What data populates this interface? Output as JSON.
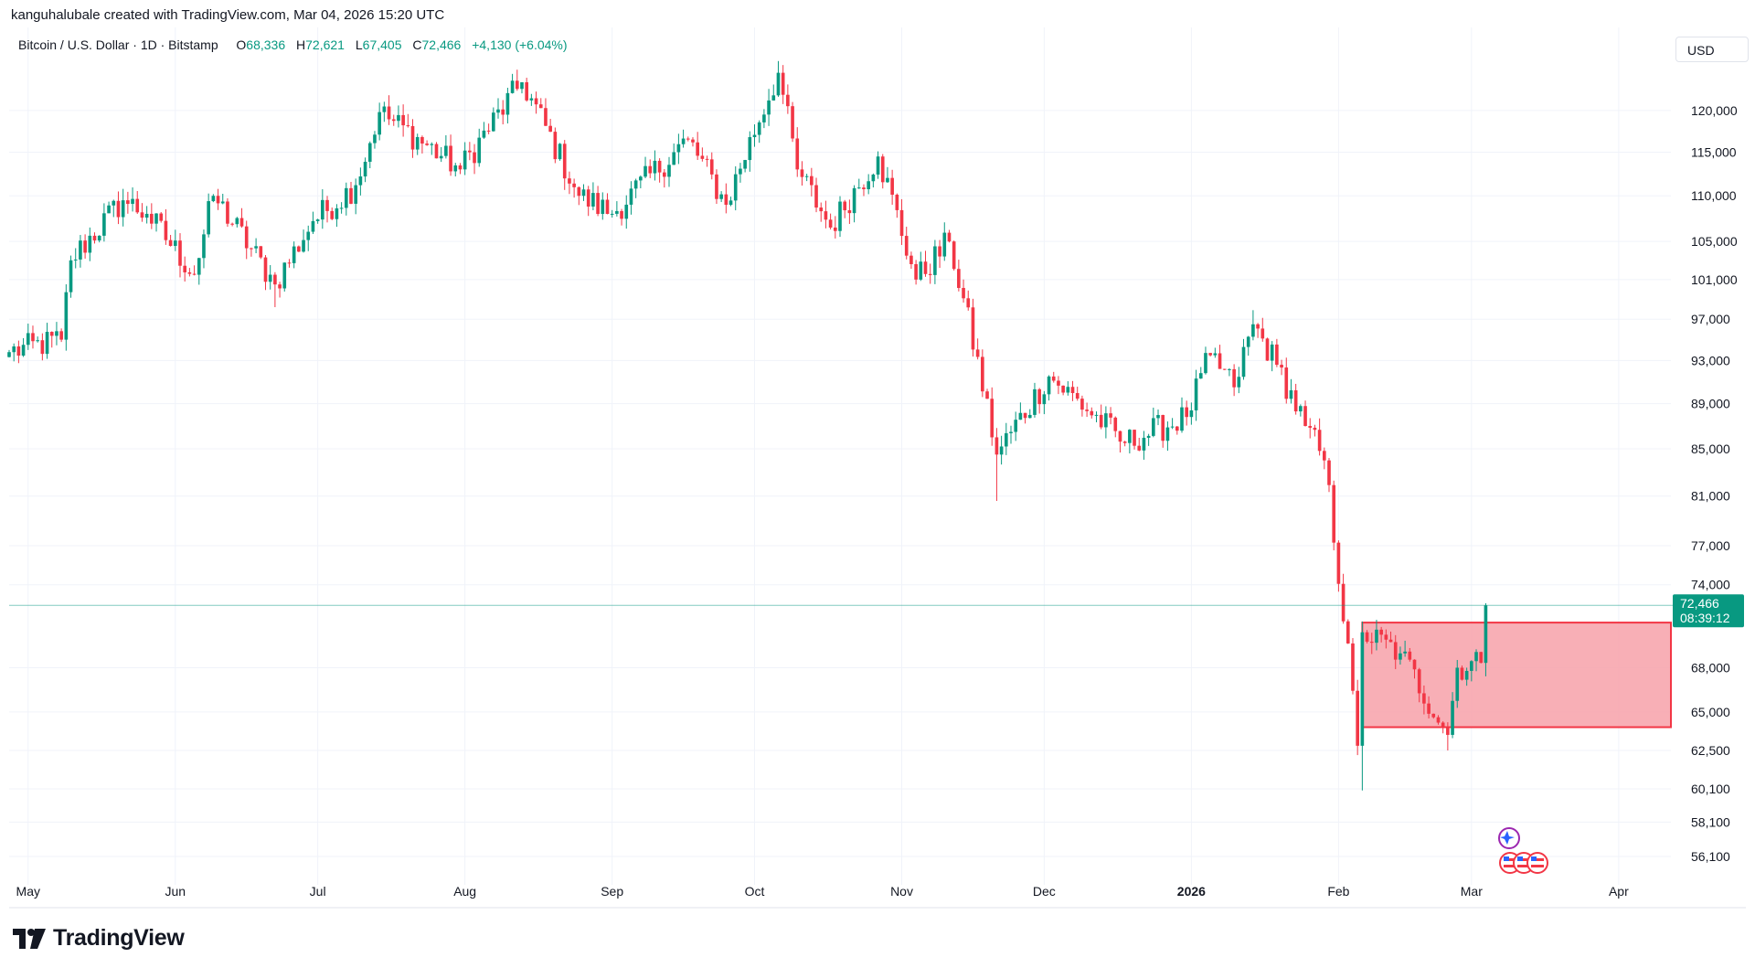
{
  "header": {
    "text": "kanguhalubale created with TradingView.com, Mar 04, 2026 15:20 UTC"
  },
  "symbol": {
    "name": "Bitcoin / U.S. Dollar · 1D · Bitstamp",
    "open_label": "O",
    "open": "68,336",
    "high_label": "H",
    "high": "72,621",
    "low_label": "L",
    "low": "67,405",
    "close_label": "C",
    "close": "72,466",
    "change": "+4,130 (+6.04%)"
  },
  "currency_button": "USD",
  "price_badge": {
    "price": "72,466",
    "countdown": "08:39:12"
  },
  "logo_text": "TradingView",
  "colors": {
    "up": "#089981",
    "down": "#f23645",
    "zone_fill": "#f7a1a9",
    "zone_stroke": "#f23645",
    "grid": "#f0f3fa"
  },
  "chart_data": {
    "type": "candlestick",
    "title": "",
    "x_tick_labels": [
      "May",
      "Jun",
      "Jul",
      "Aug",
      "Sep",
      "Oct",
      "Nov",
      "Dec",
      "2026",
      "Feb",
      "Mar",
      "Apr"
    ],
    "y_tick_labels": [
      "120,000",
      "115,000",
      "110,000",
      "105,000",
      "101,000",
      "97,000",
      "93,000",
      "89,000",
      "85,000",
      "81,000",
      "77,000",
      "74,000",
      "68,000",
      "65,000",
      "62,500",
      "60,100",
      "58,100",
      "56,100"
    ],
    "y_scale": "log",
    "ylim": [
      54500,
      127000
    ],
    "xlim": [
      "2025-04-27",
      "2026-04-12"
    ],
    "grid": true,
    "current_price": 72466,
    "zone": {
      "x_start": "2026-02-06",
      "x_end": "2026-04-12",
      "y_low": 64000,
      "y_high": 71200,
      "color": "#f7a1a9"
    },
    "keypoints": [
      {
        "date": "2025-04-27",
        "close": 93800
      },
      {
        "date": "2025-05-08",
        "close": 95000
      },
      {
        "date": "2025-05-10",
        "close": 103000
      },
      {
        "date": "2025-05-21",
        "close": 109500
      },
      {
        "date": "2025-05-26",
        "close": 108000
      },
      {
        "date": "2025-06-05",
        "close": 101500
      },
      {
        "date": "2025-06-09",
        "close": 110000
      },
      {
        "date": "2025-06-22",
        "close": 100500
      },
      {
        "date": "2025-06-30",
        "close": 107200
      },
      {
        "date": "2025-07-09",
        "close": 111200
      },
      {
        "date": "2025-07-14",
        "close": 119800
      },
      {
        "date": "2025-07-31",
        "close": 113000
      },
      {
        "date": "2025-08-13",
        "close": 123500
      },
      {
        "date": "2025-08-25",
        "close": 110000
      },
      {
        "date": "2025-09-01",
        "close": 108000
      },
      {
        "date": "2025-09-17",
        "close": 116500
      },
      {
        "date": "2025-09-25",
        "close": 109000
      },
      {
        "date": "2025-10-06",
        "close": 124700
      },
      {
        "date": "2025-10-10",
        "close": 113000
      },
      {
        "date": "2025-10-17",
        "close": 106500
      },
      {
        "date": "2025-10-27",
        "close": 114500
      },
      {
        "date": "2025-11-04",
        "close": 101000
      },
      {
        "date": "2025-11-11",
        "close": 105000
      },
      {
        "date": "2025-11-21",
        "close": 84500
      },
      {
        "date": "2025-12-02",
        "close": 91500
      },
      {
        "date": "2025-12-18",
        "close": 85500
      },
      {
        "date": "2025-12-31",
        "close": 87800
      },
      {
        "date": "2026-01-05",
        "close": 93500
      },
      {
        "date": "2026-01-10",
        "close": 90500
      },
      {
        "date": "2026-01-14",
        "close": 96500
      },
      {
        "date": "2026-01-19",
        "close": 92600
      },
      {
        "date": "2026-01-25",
        "close": 87000
      },
      {
        "date": "2026-01-29",
        "close": 84000
      },
      {
        "date": "2026-02-05",
        "close": 62800
      },
      {
        "date": "2026-02-06",
        "close": 70500
      },
      {
        "date": "2026-02-14",
        "close": 69000
      },
      {
        "date": "2026-02-24",
        "close": 63500
      },
      {
        "date": "2026-02-26",
        "close": 68000
      },
      {
        "date": "2026-03-03",
        "close": 68336
      },
      {
        "date": "2026-03-04",
        "open": 68336,
        "high": 72621,
        "low": 67405,
        "close": 72466
      }
    ],
    "notable_wicks": [
      {
        "date": "2025-06-22",
        "low": 98200
      },
      {
        "date": "2025-10-06",
        "high": 126200
      },
      {
        "date": "2025-11-21",
        "low": 80600
      },
      {
        "date": "2026-01-14",
        "high": 97900
      },
      {
        "date": "2026-02-06",
        "low": 60000
      },
      {
        "date": "2026-02-24",
        "low": 62500
      }
    ]
  }
}
